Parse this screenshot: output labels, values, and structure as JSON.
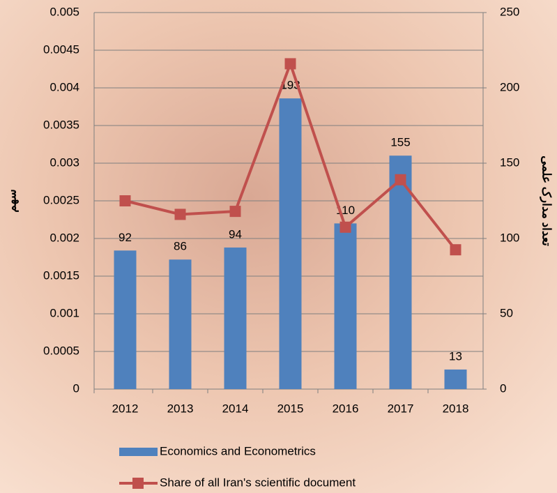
{
  "chart_data": {
    "type": "bar",
    "categories": [
      "2012",
      "2013",
      "2014",
      "2015",
      "2016",
      "2017",
      "2018"
    ],
    "series": [
      {
        "name": "Economics and Econometrics",
        "type": "bar",
        "color": "#4f81bd",
        "axis": "y2",
        "values": [
          92,
          86,
          94,
          193,
          110,
          155,
          13
        ]
      },
      {
        "name": "Share of all Iran's scientific document",
        "type": "line",
        "color": "#c0504d",
        "axis": "y",
        "values": [
          0.0025,
          0.00232,
          0.00236,
          0.00432,
          0.00215,
          0.00278,
          0.00185
        ]
      }
    ],
    "ylabel": "سهم",
    "y2label": "تعداد مدارک علمی",
    "ylim": [
      0,
      0.005
    ],
    "yticks": [
      0,
      0.0005,
      0.001,
      0.0015,
      0.002,
      0.0025,
      0.003,
      0.0035,
      0.004,
      0.0045,
      0.005
    ],
    "y2lim": [
      0,
      250
    ],
    "y2ticks": [
      0,
      50,
      100,
      150,
      200,
      250
    ],
    "grid": true,
    "legend": "bottom"
  }
}
